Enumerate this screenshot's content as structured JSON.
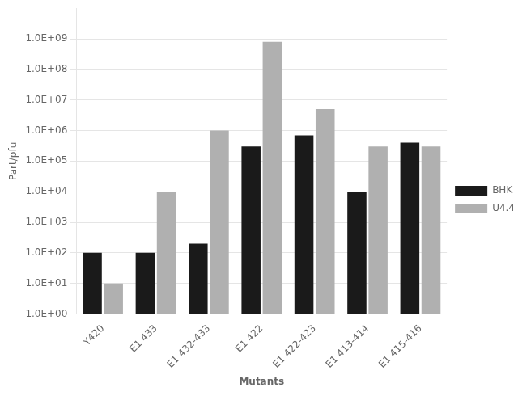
{
  "chart_data": {
    "type": "bar",
    "categories": [
      "Y420",
      "E1 433",
      "E1 432-433",
      "E1 422",
      "E1 422-423",
      "E1 413-414",
      "E1 415-416"
    ],
    "series": [
      {
        "name": "BHK",
        "color": "#1a1a1a",
        "values": [
          100,
          100,
          200,
          300000,
          700000,
          10000,
          400000
        ]
      },
      {
        "name": "U4.4",
        "color": "#b0b0b0",
        "values": [
          10,
          10000,
          1000000,
          800000000,
          5000000,
          300000,
          300000
        ]
      }
    ],
    "x_label": "Mutants",
    "y_label": "Part/pfu",
    "log": "y",
    "ylim": [
      1,
      10000000000
    ],
    "yticks": [
      {
        "value": 1,
        "label": "1.0E+00"
      },
      {
        "value": 10,
        "label": "1.0E+01"
      },
      {
        "value": 100,
        "label": "1.0E+02"
      },
      {
        "value": 1000,
        "label": "1.0E+03"
      },
      {
        "value": 10000,
        "label": "1.0E+04"
      },
      {
        "value": 100000,
        "label": "1.0E+05"
      },
      {
        "value": 1000000,
        "label": "1.0E+06"
      },
      {
        "value": 10000000,
        "label": "1.0E+07"
      },
      {
        "value": 100000000,
        "label": "1.0E+08"
      },
      {
        "value": 1000000000,
        "label": "1.0E+09"
      }
    ],
    "grid": true,
    "legend": "right"
  }
}
